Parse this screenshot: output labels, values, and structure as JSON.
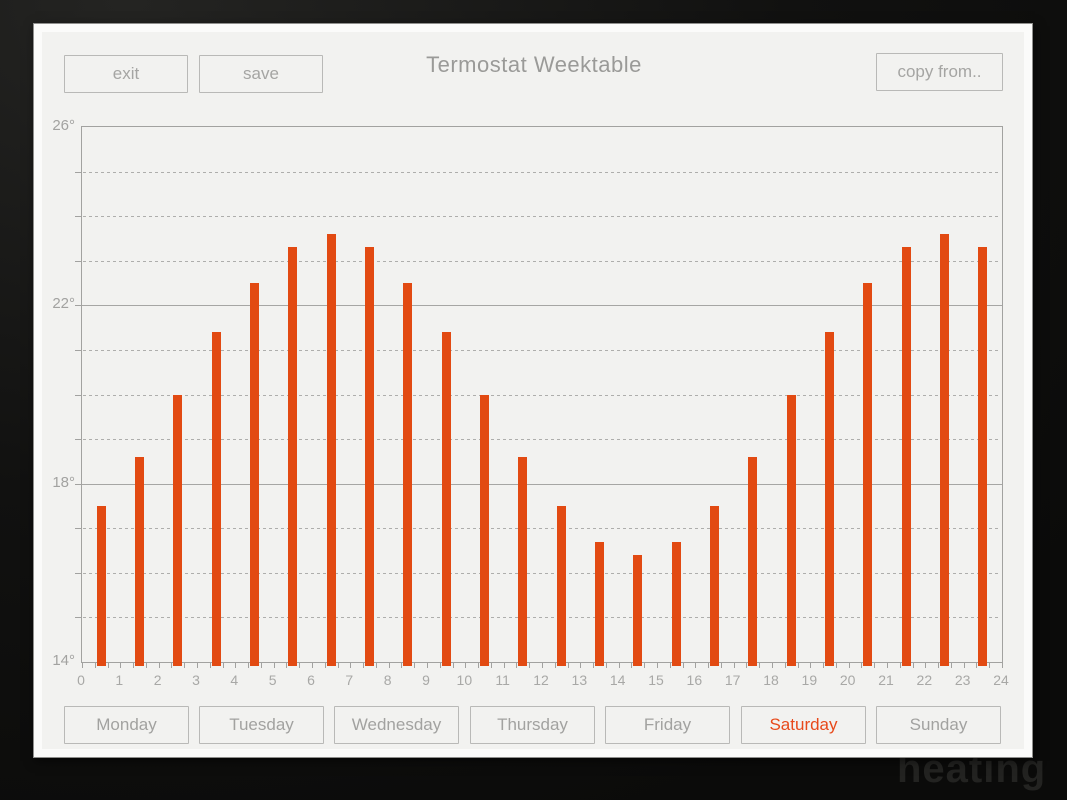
{
  "background": {
    "watermark": "heating"
  },
  "window": {
    "title": "Termostat Weektable",
    "toolbar": {
      "exit": "exit",
      "save": "save",
      "copy_from": "copy from.."
    }
  },
  "chart_data": {
    "type": "bar",
    "categories": [
      0,
      1,
      2,
      3,
      4,
      5,
      6,
      7,
      8,
      9,
      10,
      11,
      12,
      13,
      14,
      15,
      16,
      17,
      18,
      19,
      20,
      21,
      22,
      23
    ],
    "values": [
      17.5,
      18.6,
      20.0,
      21.4,
      22.5,
      23.3,
      23.6,
      23.3,
      22.5,
      21.4,
      20.0,
      18.6,
      17.5,
      16.7,
      16.4,
      16.7,
      17.5,
      18.6,
      20.0,
      21.4,
      22.5,
      23.3,
      23.6,
      23.3
    ],
    "title": "",
    "xlabel": "",
    "ylabel": "",
    "ylim": [
      14,
      26
    ],
    "xlim": [
      0,
      24
    ],
    "y_ticks": [
      {
        "value": 26,
        "label": "26°"
      },
      {
        "value": 22,
        "label": "22°"
      },
      {
        "value": 18,
        "label": "18°"
      },
      {
        "value": 14,
        "label": "14°"
      }
    ],
    "y_solid_gridlines": [
      26,
      22,
      18,
      14
    ],
    "y_dashed_gridlines": [
      25,
      24,
      23,
      21,
      20,
      19,
      17,
      16,
      15
    ],
    "x_tick_labels": [
      "0",
      "1",
      "2",
      "3",
      "4",
      "5",
      "6",
      "7",
      "8",
      "9",
      "10",
      "11",
      "12",
      "13",
      "14",
      "15",
      "16",
      "17",
      "18",
      "19",
      "20",
      "21",
      "22",
      "23",
      "24"
    ],
    "x_minor_ticks_per_hour": 3,
    "bar_color": "#e24a12",
    "legend": null
  },
  "days": {
    "items": [
      {
        "label": "Monday",
        "selected": false
      },
      {
        "label": "Tuesday",
        "selected": false
      },
      {
        "label": "Wednesday",
        "selected": false
      },
      {
        "label": "Thursday",
        "selected": false
      },
      {
        "label": "Friday",
        "selected": false
      },
      {
        "label": "Saturday",
        "selected": true
      },
      {
        "label": "Sunday",
        "selected": false
      }
    ]
  },
  "colors": {
    "accent": "#e24a12",
    "selected_day_text": "#e8491a",
    "muted_text": "#a2a2a0"
  }
}
